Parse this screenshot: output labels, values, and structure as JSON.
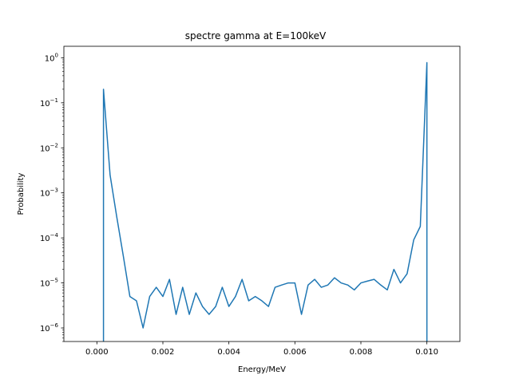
{
  "chart_data": {
    "type": "line",
    "title": "spectre gamma at E=100keV",
    "xlabel": "Energy/MeV",
    "ylabel": "Probability",
    "xlim": [
      -0.001,
      0.011
    ],
    "ylim": [
      5e-07,
      1.8
    ],
    "yscale": "log",
    "grid": false,
    "x_ticks": [
      {
        "value": 0.0,
        "label": "0.000"
      },
      {
        "value": 0.002,
        "label": "0.002"
      },
      {
        "value": 0.004,
        "label": "0.004"
      },
      {
        "value": 0.006,
        "label": "0.006"
      },
      {
        "value": 0.008,
        "label": "0.008"
      },
      {
        "value": 0.01,
        "label": "0.010"
      }
    ],
    "y_ticks": [
      {
        "value": 1e-06,
        "base": "10",
        "exp": "−6"
      },
      {
        "value": 1e-05,
        "base": "10",
        "exp": "−5"
      },
      {
        "value": 0.0001,
        "base": "10",
        "exp": "−4"
      },
      {
        "value": 0.001,
        "base": "10",
        "exp": "−3"
      },
      {
        "value": 0.01,
        "base": "10",
        "exp": "−2"
      },
      {
        "value": 0.1,
        "base": "10",
        "exp": "−1"
      },
      {
        "value": 1,
        "base": "10",
        "exp": "0"
      }
    ],
    "series": [
      {
        "color": "#1f77b4",
        "x": [
          0.0002,
          0.0002,
          0.0004,
          0.0006,
          0.0008,
          0.001,
          0.0012,
          0.0014,
          0.0016,
          0.0018,
          0.002,
          0.0022,
          0.0024,
          0.0026,
          0.0028,
          0.003,
          0.0032,
          0.0034,
          0.0036,
          0.0038,
          0.004,
          0.0042,
          0.0044,
          0.0046,
          0.0048,
          0.005,
          0.0052,
          0.0054,
          0.0056,
          0.0058,
          0.006,
          0.0062,
          0.0064,
          0.0066,
          0.0068,
          0.007,
          0.0072,
          0.0074,
          0.0076,
          0.0078,
          0.008,
          0.0082,
          0.0084,
          0.0086,
          0.0088,
          0.009,
          0.0092,
          0.0094,
          0.0096,
          0.0098,
          0.01,
          0.01
        ],
        "y": [
          1e-09,
          0.2,
          0.0025,
          0.0003,
          4e-05,
          5e-06,
          4e-06,
          1e-06,
          5e-06,
          8e-06,
          5e-06,
          1.2e-05,
          2e-06,
          8e-06,
          2e-06,
          6e-06,
          3e-06,
          2e-06,
          3e-06,
          8e-06,
          3e-06,
          5e-06,
          1.2e-05,
          4e-06,
          5e-06,
          4e-06,
          3e-06,
          8e-06,
          9e-06,
          1e-05,
          1e-05,
          2e-06,
          9e-06,
          1.2e-05,
          8e-06,
          9e-06,
          1.3e-05,
          1e-05,
          9e-06,
          7e-06,
          1e-05,
          1.1e-05,
          1.2e-05,
          9e-06,
          7e-06,
          2e-05,
          1e-05,
          1.6e-05,
          9e-05,
          0.00018,
          0.78,
          1e-09
        ]
      }
    ]
  }
}
